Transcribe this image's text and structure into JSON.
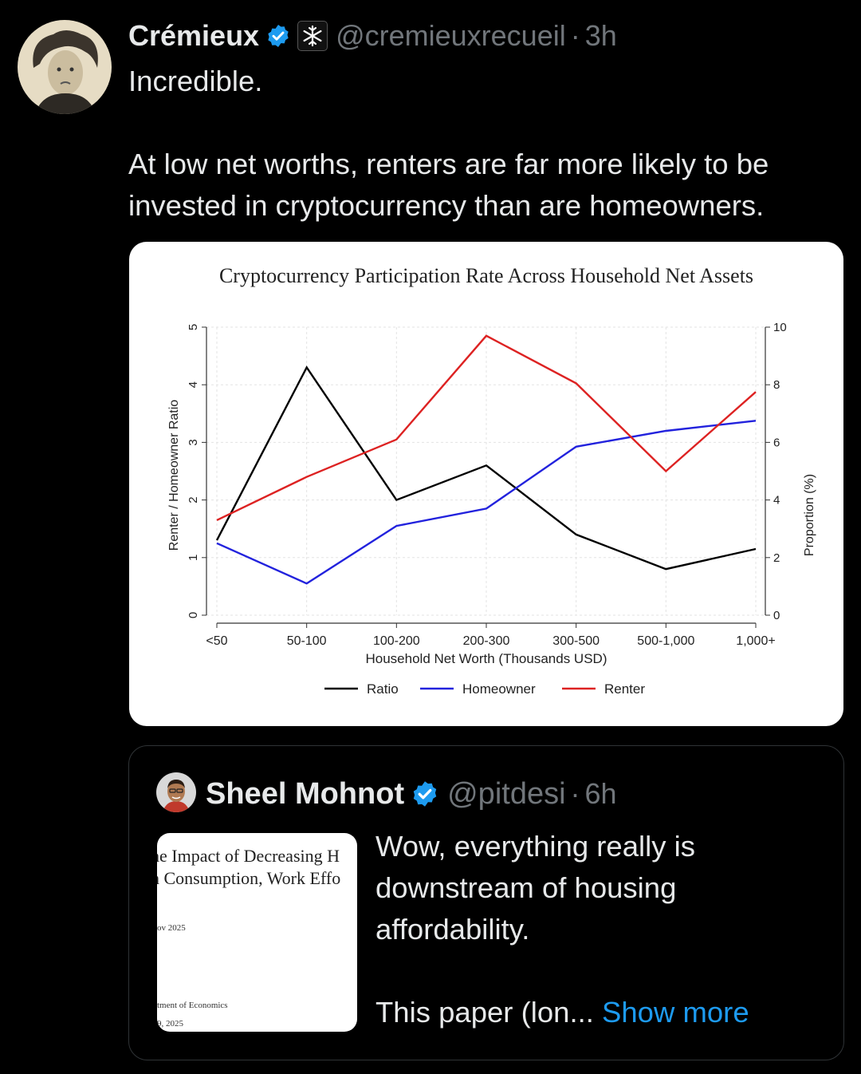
{
  "tweet": {
    "name": "Crémieux",
    "handle": "@cremieuxrecueil",
    "separator": "·",
    "time": "3h",
    "text": "Incredible.\n\nAt low net worths, renters are far more likely to be invested in cryptocurrency than are homeowners."
  },
  "chart_data": {
    "type": "line",
    "title": "Cryptocurrency Participation Rate Across Household Net Assets",
    "xlabel": "Household Net Worth (Thousands USD)",
    "ylabel_left": "Renter / Homeowner Ratio",
    "ylabel_right": "Proportion (%)",
    "categories": [
      "<50",
      "50-100",
      "100-200",
      "200-300",
      "300-500",
      "500-1,000",
      "1,000+"
    ],
    "ylim_left": [
      0,
      5
    ],
    "ylim_right": [
      0,
      10
    ],
    "yticks_left": [
      "0",
      "1",
      "2",
      "3",
      "4",
      "5"
    ],
    "yticks_right": [
      "0",
      "2",
      "4",
      "6",
      "8",
      "10"
    ],
    "grid": true,
    "legend_position": "bottom",
    "series": [
      {
        "name": "Ratio",
        "axis": "left",
        "color": "#000000",
        "values": [
          1.3,
          4.3,
          2.0,
          2.6,
          1.4,
          0.8,
          1.15
        ]
      },
      {
        "name": "Homeowner",
        "axis": "right",
        "color": "#2222dd",
        "values": [
          2.5,
          1.1,
          3.1,
          3.7,
          5.85,
          6.4,
          6.75
        ]
      },
      {
        "name": "Renter",
        "axis": "right",
        "color": "#dd2222",
        "values": [
          3.3,
          4.8,
          6.1,
          9.7,
          8.05,
          5.0,
          7.75
        ]
      }
    ]
  },
  "quote": {
    "name": "Sheel Mohnot",
    "handle": "@pitdesi",
    "separator": "·",
    "time": "6h",
    "text": "Wow, everything really is downstream of housing affordability.\n\nThis paper (lon... ",
    "show_more": "Show more",
    "thumbnail": {
      "title_line1": "he Impact of Decreasing H",
      "title_line2": "n Consumption, Work Effo",
      "date1": "ov 2025",
      "dept": "tment of Economics",
      "date2": "9, 2025"
    }
  },
  "colors": {
    "background": "#000000",
    "text": "#e7e9ea",
    "muted": "#71767b",
    "link": "#1d9bf0",
    "verified": "#1d9bf0"
  },
  "icons": {
    "verified": "verified-badge-icon",
    "affiliation": "snowflake-affiliation-icon"
  }
}
